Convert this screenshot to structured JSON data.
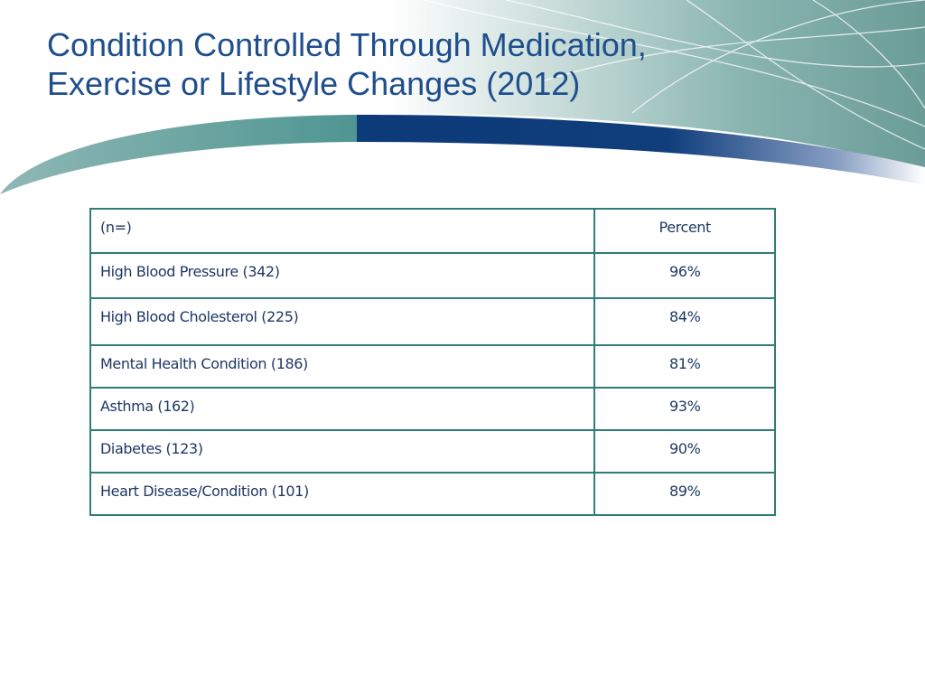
{
  "slide": {
    "title_lines": [
      "Condition Controlled Through Medication,",
      "Exercise or Lifestyle Changes (2012)"
    ]
  },
  "table": {
    "header": {
      "label": "(n=)",
      "value": "Percent"
    },
    "rows": [
      {
        "label": "High Blood Pressure (342)",
        "value": "96%"
      },
      {
        "label": "High Blood Cholesterol (225)",
        "value": "84%"
      },
      {
        "label": "Mental Health Condition (186)",
        "value": "81%"
      },
      {
        "label": "Asthma (162)",
        "value": "93%"
      },
      {
        "label": "Diabetes (123)",
        "value": "90%"
      },
      {
        "label": "Heart Disease/Condition (101)",
        "value": "89%"
      }
    ]
  },
  "colors": {
    "title": "#1f4e8c",
    "table_border": "#2e7d78",
    "table_text": "#1f3864",
    "banner_teal": "#5f9e9c",
    "banner_navy": "#0d3a78"
  }
}
